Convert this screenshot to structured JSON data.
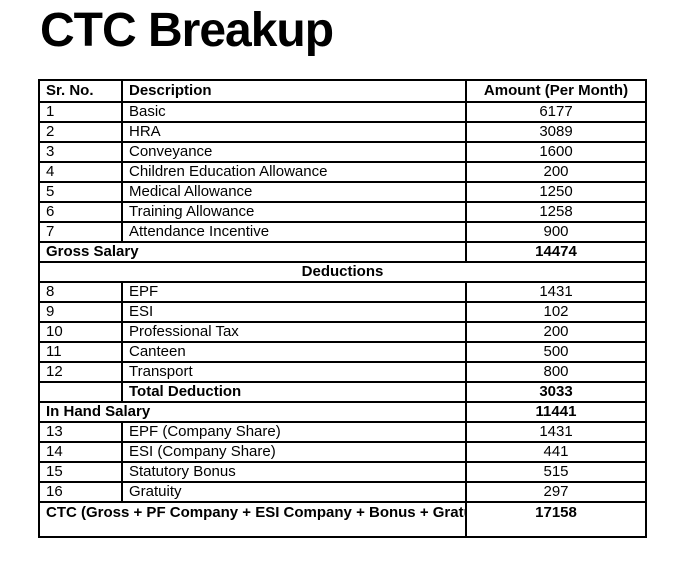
{
  "page": {
    "title": "CTC Breakup"
  },
  "table": {
    "headers": {
      "sr": "Sr. No.",
      "description": "Description",
      "amount": "Amount (Per Month)"
    },
    "earnings": [
      {
        "sr": "1",
        "description": "Basic",
        "amount": "6177"
      },
      {
        "sr": "2",
        "description": "HRA",
        "amount": "3089"
      },
      {
        "sr": "3",
        "description": "Conveyance",
        "amount": "1600"
      },
      {
        "sr": "4",
        "description": "Children Education Allowance",
        "amount": "200"
      },
      {
        "sr": "5",
        "description": "Medical Allowance",
        "amount": "1250"
      },
      {
        "sr": "6",
        "description": "Training Allowance",
        "amount": "1258"
      },
      {
        "sr": "7",
        "description": "Attendance Incentive",
        "amount": "900"
      }
    ],
    "gross_salary": {
      "label": "Gross Salary",
      "amount": "14474"
    },
    "deductions_section_label": "Deductions",
    "deductions": [
      {
        "sr": "8",
        "description": "EPF",
        "amount": "1431"
      },
      {
        "sr": "9",
        "description": "ESI",
        "amount": "102"
      },
      {
        "sr": "10",
        "description": "Professional Tax",
        "amount": "200"
      },
      {
        "sr": "11",
        "description": "Canteen",
        "amount": "500"
      },
      {
        "sr": "12",
        "description": "Transport",
        "amount": "800"
      }
    ],
    "total_deduction": {
      "label": "Total Deduction",
      "amount": "3033"
    },
    "in_hand_salary": {
      "label": "In Hand Salary",
      "amount": "11441"
    },
    "company_contributions": [
      {
        "sr": "13",
        "description": "EPF (Company Share)",
        "amount": "1431"
      },
      {
        "sr": "14",
        "description": "ESI (Company Share)",
        "amount": "441"
      },
      {
        "sr": "15",
        "description": "Statutory Bonus",
        "amount": "515"
      },
      {
        "sr": "16",
        "description": "Gratuity",
        "amount": "297"
      }
    ],
    "ctc": {
      "label": "CTC (Gross + PF Company + ESI Company + Bonus + Gratuity)",
      "amount": "17158"
    }
  },
  "colors": {
    "text": "#000000",
    "border": "#000000",
    "background": "#ffffff"
  }
}
